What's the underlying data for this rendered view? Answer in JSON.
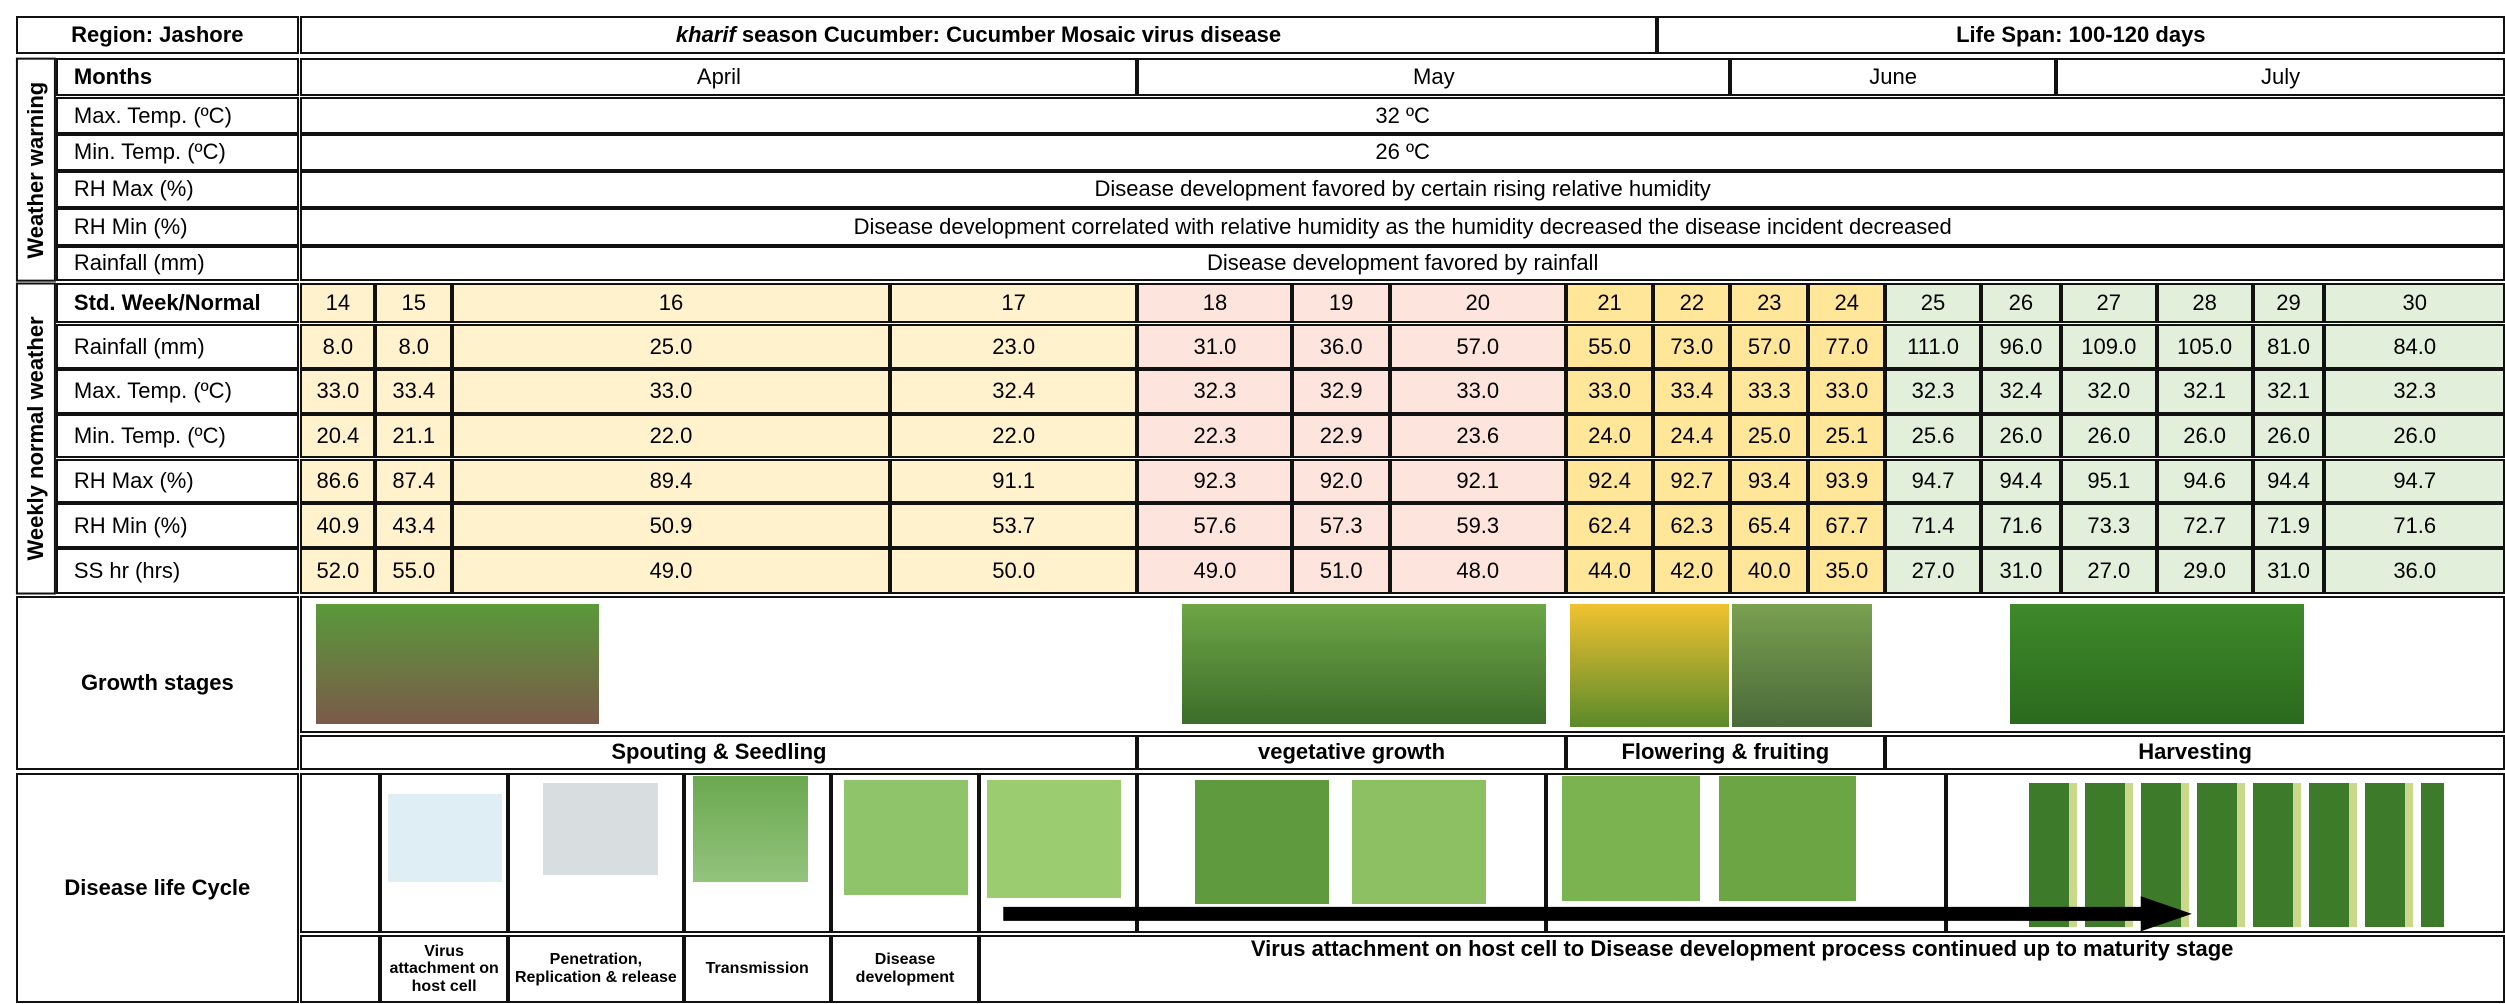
{
  "header": {
    "region": "Region: Jashore",
    "title_italic": "kharif",
    "title_rest": " season Cucumber: Cucumber Mosaic virus disease",
    "life_span": "Life Span: 100-120 days"
  },
  "weather_warning": {
    "label": "Weather warning",
    "months_label": "Months",
    "months": [
      "April",
      "May",
      "June",
      "July"
    ],
    "rows": [
      {
        "label": "Max. Temp. (ºC)",
        "text": "32 ºC"
      },
      {
        "label": "Min. Temp. (ºC)",
        "text": "26 ºC"
      },
      {
        "label": "RH Max (%)",
        "text": "Disease development favored by certain rising relative humidity"
      },
      {
        "label": "RH Min (%)",
        "text": "Disease development correlated with relative humidity as the humidity decreased the disease incident decreased"
      },
      {
        "label": "Rainfall (mm)",
        "text": "Disease development favored by rainfall"
      }
    ]
  },
  "weekly": {
    "label": "Weekly normal weather",
    "week_label": "Std. Week/Normal",
    "weeks": [
      14,
      15,
      16,
      17,
      18,
      19,
      20,
      21,
      22,
      23,
      24,
      25,
      26,
      27,
      28,
      29,
      30
    ],
    "rows": [
      {
        "label": "Rainfall (mm)",
        "values": [
          "8.0",
          "8.0",
          "25.0",
          "23.0",
          "31.0",
          "36.0",
          "57.0",
          "55.0",
          "73.0",
          "57.0",
          "77.0",
          "111.0",
          "96.0",
          "109.0",
          "105.0",
          "81.0",
          "84.0"
        ]
      },
      {
        "label": "Max. Temp. (ºC)",
        "values": [
          "33.0",
          "33.4",
          "33.0",
          "32.4",
          "32.3",
          "32.9",
          "33.0",
          "33.0",
          "33.4",
          "33.3",
          "33.0",
          "32.3",
          "32.4",
          "32.0",
          "32.1",
          "32.1",
          "32.3"
        ]
      },
      {
        "label": "Min. Temp. (ºC)",
        "values": [
          "20.4",
          "21.1",
          "22.0",
          "22.0",
          "22.3",
          "22.9",
          "23.6",
          "24.0",
          "24.4",
          "25.0",
          "25.1",
          "25.6",
          "26.0",
          "26.0",
          "26.0",
          "26.0",
          "26.0"
        ]
      },
      {
        "label": "RH Max (%)",
        "values": [
          "86.6",
          "87.4",
          "89.4",
          "91.1",
          "92.3",
          "92.0",
          "92.1",
          "92.4",
          "92.7",
          "93.4",
          "93.9",
          "94.7",
          "94.4",
          "95.1",
          "94.6",
          "94.4",
          "94.7"
        ]
      },
      {
        "label": "RH Min (%)",
        "values": [
          "40.9",
          "43.4",
          "50.9",
          "53.7",
          "57.6",
          "57.3",
          "59.3",
          "62.4",
          "62.3",
          "65.4",
          "67.7",
          "71.4",
          "71.6",
          "73.3",
          "72.7",
          "71.9",
          "71.6"
        ]
      },
      {
        "label": "SS hr (hrs)",
        "values": [
          "52.0",
          "55.0",
          "49.0",
          "50.0",
          "49.0",
          "51.0",
          "48.0",
          "44.0",
          "42.0",
          "40.0",
          "35.0",
          "27.0",
          "31.0",
          "27.0",
          "29.0",
          "31.0",
          "36.0"
        ]
      }
    ]
  },
  "growth": {
    "label": "Growth stages",
    "stages": [
      "Spouting & Seedling",
      "vegetative growth",
      "Flowering & fruiting",
      "Harvesting"
    ]
  },
  "disease": {
    "label": "Disease life Cycle",
    "stages": [
      "Virus attachment on host cell",
      "Penetration, Replication & release",
      "Transmission",
      "Disease development"
    ],
    "continued": "Virus attachment on host cell to Disease development process continued up to maturity stage"
  }
}
